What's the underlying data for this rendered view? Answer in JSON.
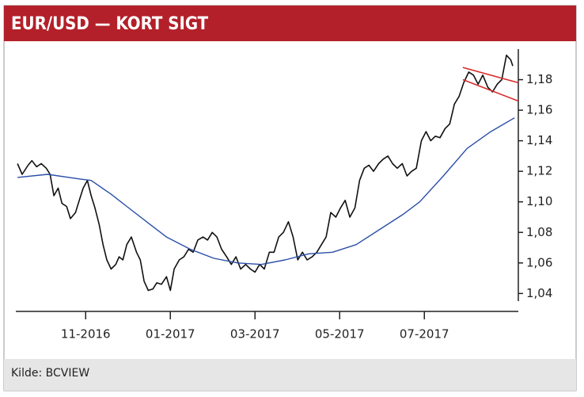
{
  "chart_data": {
    "type": "line",
    "title": "EUR/USD — KORT SIGT",
    "source": "Kilde: BCVIEW",
    "x": [
      8.39,
      8.5,
      8.64,
      8.73,
      8.84,
      8.95,
      9.07,
      9.16,
      9.25,
      9.35,
      9.44,
      9.55,
      9.64,
      9.76,
      9.85,
      9.94,
      10.04,
      10.13,
      10.22,
      10.32,
      10.41,
      10.5,
      10.6,
      10.71,
      10.79,
      10.88,
      10.97,
      11.08,
      11.2,
      11.29,
      11.38,
      11.48,
      11.59,
      11.68,
      11.79,
      11.91,
      12.0,
      12.09,
      12.21,
      12.32,
      12.43,
      12.54,
      12.65,
      12.77,
      12.88,
      12.99,
      13.1,
      13.21,
      13.33,
      13.44,
      13.55,
      13.66,
      13.78,
      13.89,
      14.0,
      14.11,
      14.22,
      14.34,
      14.45,
      14.56,
      14.67,
      14.79,
      14.9,
      15.01,
      15.12,
      15.23,
      15.35,
      15.46,
      15.57,
      15.68,
      15.79,
      15.91,
      16.02,
      16.13,
      16.24,
      16.36,
      16.47,
      16.58,
      16.69,
      16.8,
      16.92,
      17.03,
      17.14,
      17.25,
      17.36,
      17.48,
      17.59,
      17.7,
      17.81,
      17.93,
      18.04,
      18.15,
      18.26,
      18.37,
      18.49,
      18.6,
      18.71,
      18.82,
      18.93,
      19.05,
      19.16,
      19.27,
      19.38,
      19.5,
      19.61,
      19.72,
      19.83,
      19.94,
      20.04,
      20.09
    ],
    "series": [
      {
        "color": "#111111",
        "values": [
          1.125,
          1.118,
          1.124,
          1.127,
          1.123,
          1.125,
          1.122,
          1.118,
          1.104,
          1.109,
          1.099,
          1.097,
          1.089,
          1.093,
          1.101,
          1.109,
          1.114,
          1.104,
          1.096,
          1.085,
          1.072,
          1.062,
          1.056,
          1.059,
          1.064,
          1.062,
          1.072,
          1.077,
          1.067,
          1.062,
          1.048,
          1.042,
          1.043,
          1.047,
          1.046,
          1.051,
          1.042,
          1.056,
          1.062,
          1.064,
          1.069,
          1.067,
          1.075,
          1.077,
          1.075,
          1.08,
          1.077,
          1.069,
          1.064,
          1.059,
          1.064,
          1.056,
          1.059,
          1.056,
          1.054,
          1.059,
          1.056,
          1.067,
          1.067,
          1.077,
          1.08,
          1.087,
          1.077,
          1.062,
          1.067,
          1.062,
          1.064,
          1.067,
          1.072,
          1.077,
          1.093,
          1.09,
          1.096,
          1.101,
          1.09,
          1.096,
          1.114,
          1.122,
          1.124,
          1.12,
          1.125,
          1.128,
          1.13,
          1.125,
          1.122,
          1.125,
          1.117,
          1.12,
          1.122,
          1.14,
          1.146,
          1.14,
          1.143,
          1.142,
          1.148,
          1.151,
          1.164,
          1.169,
          1.178,
          1.185,
          1.183,
          1.177,
          1.183,
          1.175,
          1.172,
          1.177,
          1.18,
          1.196,
          1.193,
          1.189
        ]
      },
      {
        "color": "#2b4fa8",
        "x": [
          8.39,
          9.1,
          9.85,
          10.13,
          10.6,
          10.97,
          11.53,
          11.91,
          12.47,
          13.03,
          13.59,
          14.15,
          14.71,
          15.27,
          15.83,
          16.39,
          16.95,
          17.51,
          17.89,
          18.45,
          19.01,
          19.57,
          20.13
        ],
        "values": [
          1.116,
          1.118,
          1.115,
          1.114,
          1.105,
          1.097,
          1.085,
          1.077,
          1.069,
          1.063,
          1.06,
          1.059,
          1.062,
          1.066,
          1.067,
          1.072,
          1.082,
          1.092,
          1.1,
          1.117,
          1.135,
          1.146,
          1.155
        ]
      }
    ],
    "trend_lines": [
      {
        "color": "#d62a2a",
        "x": [
          18.91,
          20.22
        ],
        "values": [
          1.188,
          1.178
        ]
      },
      {
        "color": "#d62a2a",
        "x": [
          18.91,
          20.22
        ],
        "values": [
          1.18,
          1.166
        ]
      }
    ],
    "xlim": [
      8.35,
      20.22
    ],
    "ylim": [
      1.035,
      1.2
    ],
    "xticks": [
      {
        "value": 10,
        "label": "11-2016"
      },
      {
        "value": 12,
        "label": "01-2017"
      },
      {
        "value": 14,
        "label": "03-2017"
      },
      {
        "value": 16,
        "label": "05-2017"
      },
      {
        "value": 18,
        "label": "07-2017"
      }
    ],
    "yticks": [
      {
        "value": 1.04,
        "label": "1,04"
      },
      {
        "value": 1.06,
        "label": "1,06"
      },
      {
        "value": 1.08,
        "label": "1,08"
      },
      {
        "value": 1.1,
        "label": "1,10"
      },
      {
        "value": 1.12,
        "label": "1,12"
      },
      {
        "value": 1.14,
        "label": "1,14"
      },
      {
        "value": 1.16,
        "label": "1,16"
      },
      {
        "value": 1.18,
        "label": "1,18"
      }
    ],
    "grid": false
  }
}
